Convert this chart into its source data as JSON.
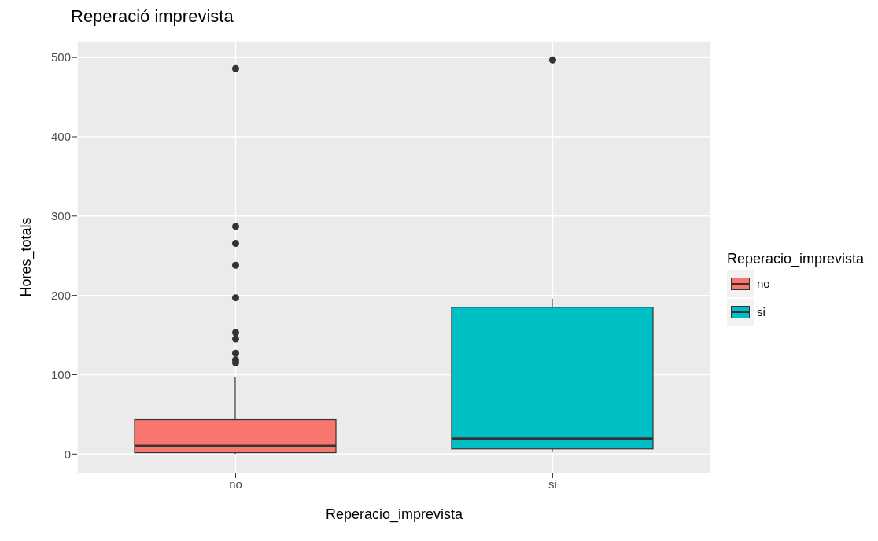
{
  "chart_data": {
    "type": "box",
    "title": "Reperació imprevista",
    "xlabel": "Reperacio_imprevista",
    "ylabel": "Hores_totals",
    "legend_title": "Reperacio_imprevista",
    "categories": [
      "no",
      "si"
    ],
    "series": [
      {
        "name": "no",
        "color": "#f8766d",
        "boxes": [
          {
            "low": 0,
            "q1": 1.7,
            "median": 10.3,
            "q3": 43.4,
            "high": 96.7,
            "outliers": [
              486,
              287,
              265.5,
              238,
              197,
              153,
              145,
              127,
              118.6,
              115
            ]
          },
          null
        ]
      },
      {
        "name": "si",
        "color": "#00bfc4",
        "boxes": [
          null,
          {
            "low": 2.4,
            "q1": 6.5,
            "median": 19.5,
            "q3": 185,
            "high": 196,
            "outliers": [
              497
            ]
          }
        ]
      }
    ],
    "ylim": [
      -24.5,
      521
    ],
    "yticks": [
      0,
      100,
      200,
      300,
      400,
      500
    ],
    "grid": true,
    "legend": "right"
  }
}
